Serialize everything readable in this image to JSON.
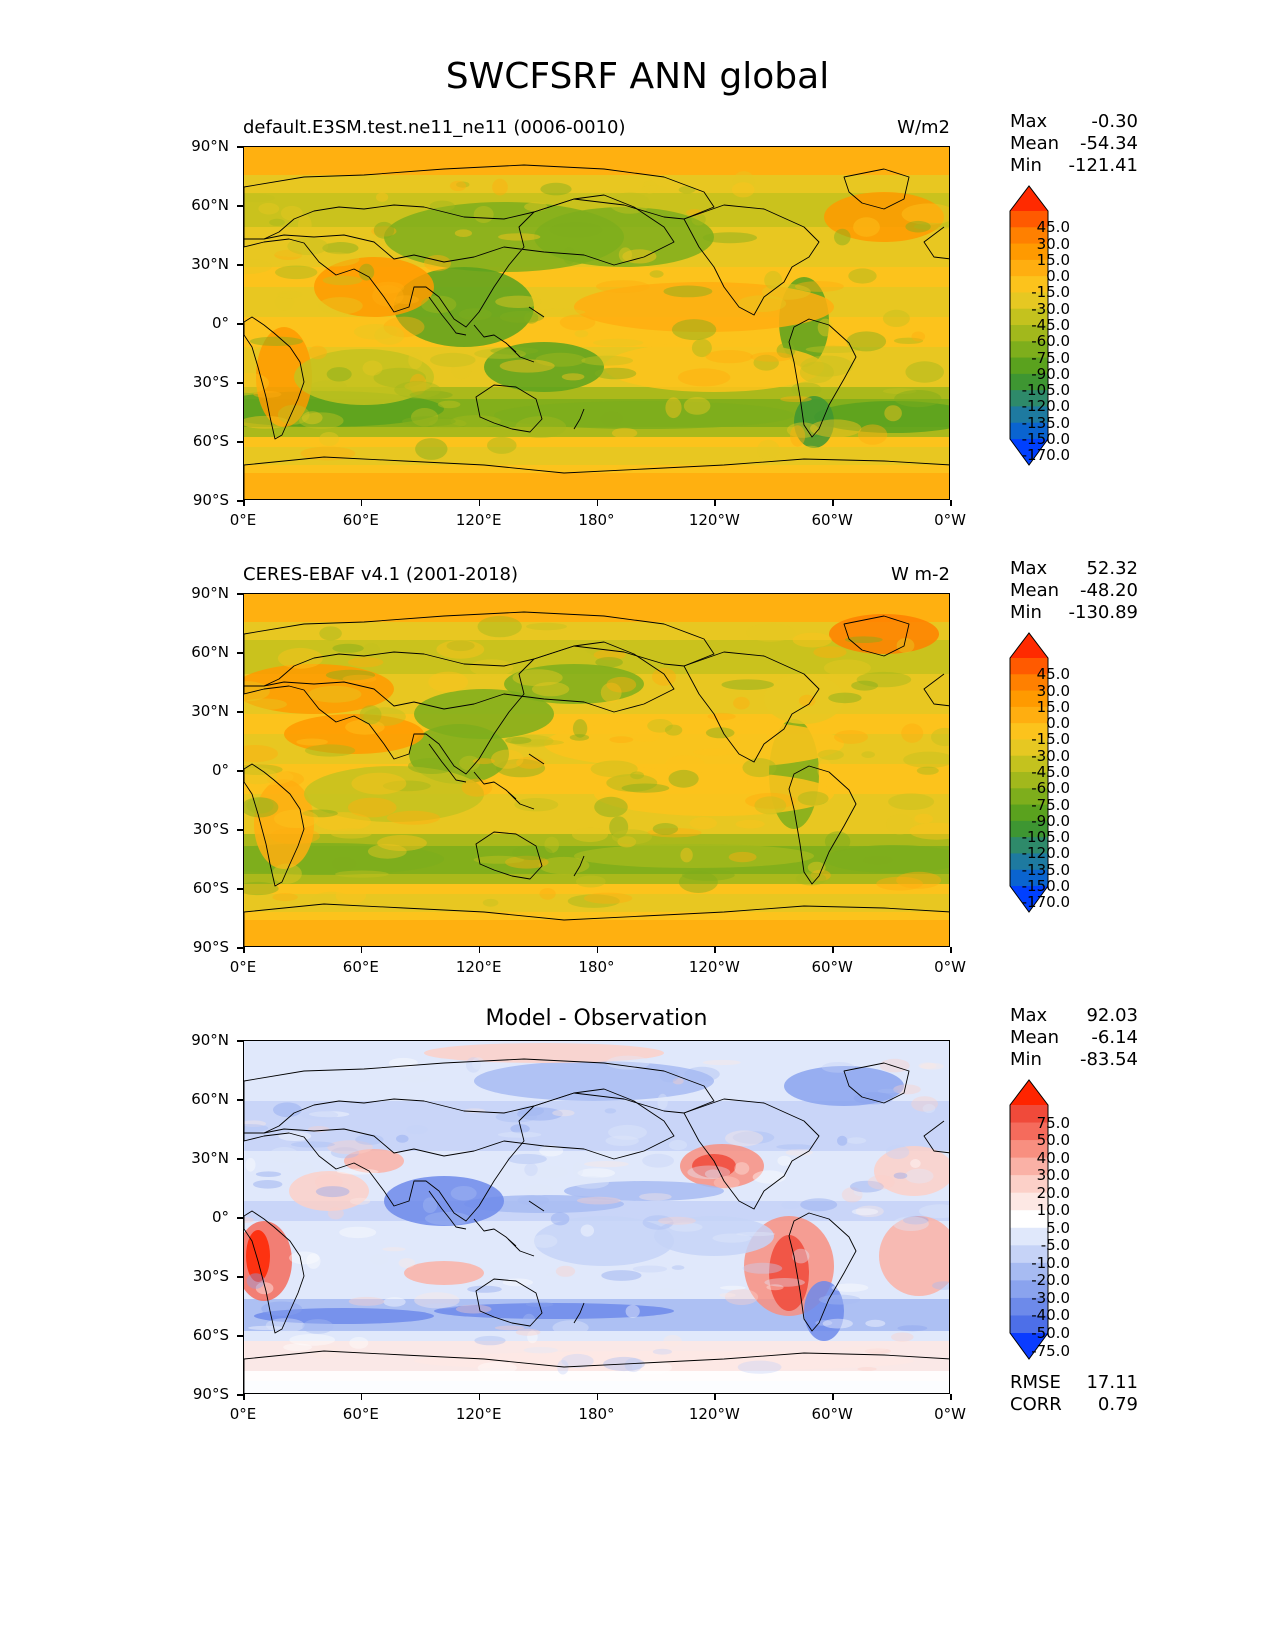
{
  "figure": {
    "title": "SWCFSRF ANN global"
  },
  "axes": {
    "lat_ticks": [
      "90°N",
      "60°N",
      "30°N",
      "0°",
      "30°S",
      "60°S",
      "90°S"
    ],
    "lon_ticks": [
      "0°E",
      "60°E",
      "120°E",
      "180°",
      "120°W",
      "60°W",
      "0°W"
    ]
  },
  "panels": [
    {
      "title_left": "default.E3SM.test.ne11_ne11 (0006-0010)",
      "title_right": "W/m2",
      "title_center": "",
      "stats": [
        {
          "label": "Max",
          "value": "-0.30"
        },
        {
          "label": "Mean",
          "value": "-54.34"
        },
        {
          "label": "Min",
          "value": "-121.41"
        }
      ],
      "extra_stats": []
    },
    {
      "title_left": "CERES-EBAF v4.1 (2001-2018)",
      "title_right": "W m-2",
      "title_center": "",
      "stats": [
        {
          "label": "Max",
          "value": "52.32"
        },
        {
          "label": "Mean",
          "value": "-48.20"
        },
        {
          "label": "Min",
          "value": "-130.89"
        }
      ],
      "extra_stats": []
    },
    {
      "title_left": "",
      "title_right": "",
      "title_center": "Model - Observation",
      "stats": [
        {
          "label": "Max",
          "value": "92.03"
        },
        {
          "label": "Mean",
          "value": "-6.14"
        },
        {
          "label": "Min",
          "value": "-83.54"
        }
      ],
      "extra_stats": [
        {
          "label": "RMSE",
          "value": "17.11"
        },
        {
          "label": "CORR",
          "value": "0.79"
        }
      ]
    }
  ],
  "colorbars": {
    "field": {
      "labels": [
        "45.0",
        "30.0",
        "15.0",
        "0.0",
        "-15.0",
        "-30.0",
        "-45.0",
        "-60.0",
        "-75.0",
        "-90.0",
        "-105.0",
        "-120.0",
        "-135.0",
        "-150.0",
        "-170.0"
      ],
      "colors": [
        "#ff2a00",
        "#ff5a00",
        "#ff8000",
        "#ff9a00",
        "#ffae10",
        "#fcc31c",
        "#e6c822",
        "#c4c21e",
        "#a2b81c",
        "#7eae1c",
        "#5aa21e",
        "#3e9632",
        "#2e8a6a",
        "#1e7aa0",
        "#0a64d0",
        "#0040ff"
      ]
    },
    "diff": {
      "labels": [
        "75.0",
        "50.0",
        "40.0",
        "30.0",
        "20.0",
        "10.0",
        "5.0",
        "-5.0",
        "-10.0",
        "-20.0",
        "-30.0",
        "-40.0",
        "-50.0",
        "-75.0"
      ],
      "colors": [
        "#ff2400",
        "#f04a3a",
        "#f56b5c",
        "#f88f80",
        "#fab1a6",
        "#fcd0c8",
        "#fde8e4",
        "#ffffff",
        "#e0e8fb",
        "#c6d3f7",
        "#a7bbf2",
        "#8aa3ee",
        "#6d8aea",
        "#4d6fe8",
        "#0a3cff"
      ]
    }
  },
  "chart_data": [
    {
      "type": "heatmap",
      "subtype": "global map (filled contour)",
      "title": "SWCFSRF ANN global",
      "panel_title": "default.E3SM.test.ne11_ne11 (0006-0010)",
      "units": "W/m2",
      "xlim": [
        0,
        360
      ],
      "ylim": [
        -90,
        90
      ],
      "levels": [
        -170,
        -150,
        -135,
        -120,
        -105,
        -90,
        -75,
        -60,
        -45,
        -30,
        -15,
        0,
        15,
        30,
        45
      ],
      "max": -0.3,
      "mean": -54.34,
      "min": -121.41
    },
    {
      "type": "heatmap",
      "subtype": "global map (filled contour)",
      "panel_title": "CERES-EBAF v4.1 (2001-2018)",
      "units": "W m-2",
      "xlim": [
        0,
        360
      ],
      "ylim": [
        -90,
        90
      ],
      "levels": [
        -170,
        -150,
        -135,
        -120,
        -105,
        -90,
        -75,
        -60,
        -45,
        -30,
        -15,
        0,
        15,
        30,
        45
      ],
      "max": 52.32,
      "mean": -48.2,
      "min": -130.89
    },
    {
      "type": "heatmap",
      "subtype": "global map (filled contour)",
      "panel_title": "Model - Observation",
      "xlim": [
        0,
        360
      ],
      "ylim": [
        -90,
        90
      ],
      "levels": [
        -75,
        -50,
        -40,
        -30,
        -20,
        -10,
        -5,
        5,
        10,
        20,
        30,
        40,
        50,
        75
      ],
      "max": 92.03,
      "mean": -6.14,
      "min": -83.54,
      "rmse": 17.11,
      "corr": 0.79
    }
  ]
}
